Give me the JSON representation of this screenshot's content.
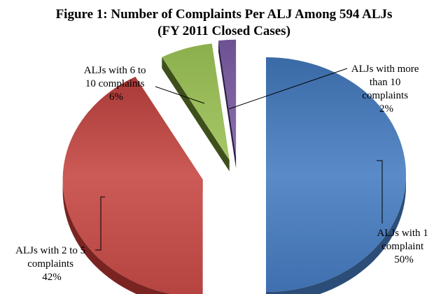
{
  "chart_data": {
    "type": "pie",
    "title": "Figure 1:  Number of Complaints Per ALJ Among 594 ALJs",
    "subtitle": "(FY 2011 Closed Cases)",
    "slices": [
      {
        "label_lines": [
          "ALJs with 1",
          "complaint"
        ],
        "value": 50,
        "value_label": "50%",
        "color": "#4f81bd",
        "side_color": "#2c4d78"
      },
      {
        "label_lines": [
          "ALJs with 2 to 5",
          "complaints"
        ],
        "value": 42,
        "value_label": "42%",
        "color": "#c0504d",
        "side_color": "#7a2422"
      },
      {
        "label_lines": [
          "ALJs with 6 to",
          "10 complaints"
        ],
        "value": 6,
        "value_label": "6%",
        "color": "#9bbb59",
        "side_color": "#3e4f1c"
      },
      {
        "label_lines": [
          "ALJs with more",
          "than 10",
          "complaints"
        ],
        "value": 2,
        "value_label": "2%",
        "color": "#8064a2",
        "side_color": "#2b1d45"
      }
    ]
  }
}
